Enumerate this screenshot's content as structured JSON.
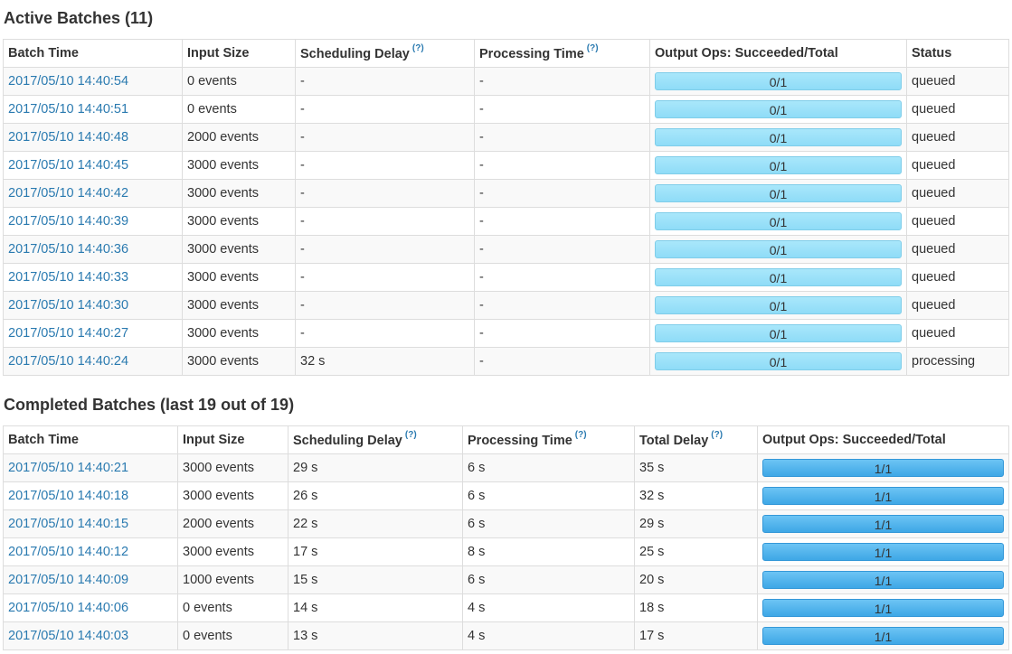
{
  "active": {
    "title": "Active Batches (11)",
    "headers": {
      "batch_time": "Batch Time",
      "input_size": "Input Size",
      "scheduling_delay": "Scheduling Delay",
      "processing_time": "Processing Time",
      "output_ops": "Output Ops: Succeeded/Total",
      "status": "Status"
    },
    "help_mark": "(?)",
    "rows": [
      {
        "batch_time": "2017/05/10 14:40:54",
        "input_size": "0 events",
        "scheduling_delay": "-",
        "processing_time": "-",
        "output_ops": "0/1",
        "status": "queued"
      },
      {
        "batch_time": "2017/05/10 14:40:51",
        "input_size": "0 events",
        "scheduling_delay": "-",
        "processing_time": "-",
        "output_ops": "0/1",
        "status": "queued"
      },
      {
        "batch_time": "2017/05/10 14:40:48",
        "input_size": "2000 events",
        "scheduling_delay": "-",
        "processing_time": "-",
        "output_ops": "0/1",
        "status": "queued"
      },
      {
        "batch_time": "2017/05/10 14:40:45",
        "input_size": "3000 events",
        "scheduling_delay": "-",
        "processing_time": "-",
        "output_ops": "0/1",
        "status": "queued"
      },
      {
        "batch_time": "2017/05/10 14:40:42",
        "input_size": "3000 events",
        "scheduling_delay": "-",
        "processing_time": "-",
        "output_ops": "0/1",
        "status": "queued"
      },
      {
        "batch_time": "2017/05/10 14:40:39",
        "input_size": "3000 events",
        "scheduling_delay": "-",
        "processing_time": "-",
        "output_ops": "0/1",
        "status": "queued"
      },
      {
        "batch_time": "2017/05/10 14:40:36",
        "input_size": "3000 events",
        "scheduling_delay": "-",
        "processing_time": "-",
        "output_ops": "0/1",
        "status": "queued"
      },
      {
        "batch_time": "2017/05/10 14:40:33",
        "input_size": "3000 events",
        "scheduling_delay": "-",
        "processing_time": "-",
        "output_ops": "0/1",
        "status": "queued"
      },
      {
        "batch_time": "2017/05/10 14:40:30",
        "input_size": "3000 events",
        "scheduling_delay": "-",
        "processing_time": "-",
        "output_ops": "0/1",
        "status": "queued"
      },
      {
        "batch_time": "2017/05/10 14:40:27",
        "input_size": "3000 events",
        "scheduling_delay": "-",
        "processing_time": "-",
        "output_ops": "0/1",
        "status": "queued"
      },
      {
        "batch_time": "2017/05/10 14:40:24",
        "input_size": "3000 events",
        "scheduling_delay": "32 s",
        "processing_time": "-",
        "output_ops": "0/1",
        "status": "processing"
      }
    ]
  },
  "completed": {
    "title": "Completed Batches (last 19 out of 19)",
    "headers": {
      "batch_time": "Batch Time",
      "input_size": "Input Size",
      "scheduling_delay": "Scheduling Delay",
      "processing_time": "Processing Time",
      "total_delay": "Total Delay",
      "output_ops": "Output Ops: Succeeded/Total"
    },
    "help_mark": "(?)",
    "rows": [
      {
        "batch_time": "2017/05/10 14:40:21",
        "input_size": "3000 events",
        "scheduling_delay": "29 s",
        "processing_time": "6 s",
        "total_delay": "35 s",
        "output_ops": "1/1"
      },
      {
        "batch_time": "2017/05/10 14:40:18",
        "input_size": "3000 events",
        "scheduling_delay": "26 s",
        "processing_time": "6 s",
        "total_delay": "32 s",
        "output_ops": "1/1"
      },
      {
        "batch_time": "2017/05/10 14:40:15",
        "input_size": "2000 events",
        "scheduling_delay": "22 s",
        "processing_time": "6 s",
        "total_delay": "29 s",
        "output_ops": "1/1"
      },
      {
        "batch_time": "2017/05/10 14:40:12",
        "input_size": "3000 events",
        "scheduling_delay": "17 s",
        "processing_time": "8 s",
        "total_delay": "25 s",
        "output_ops": "1/1"
      },
      {
        "batch_time": "2017/05/10 14:40:09",
        "input_size": "1000 events",
        "scheduling_delay": "15 s",
        "processing_time": "6 s",
        "total_delay": "20 s",
        "output_ops": "1/1"
      },
      {
        "batch_time": "2017/05/10 14:40:06",
        "input_size": "0 events",
        "scheduling_delay": "14 s",
        "processing_time": "4 s",
        "total_delay": "18 s",
        "output_ops": "1/1"
      },
      {
        "batch_time": "2017/05/10 14:40:03",
        "input_size": "0 events",
        "scheduling_delay": "13 s",
        "processing_time": "4 s",
        "total_delay": "17 s",
        "output_ops": "1/1"
      }
    ]
  },
  "colors": {
    "link": "#2a7ab0",
    "active_progress": "#8fdcf7",
    "completed_progress": "#3ea7e6",
    "row_stripe": "#f9f9f9",
    "border": "#dddddd"
  }
}
